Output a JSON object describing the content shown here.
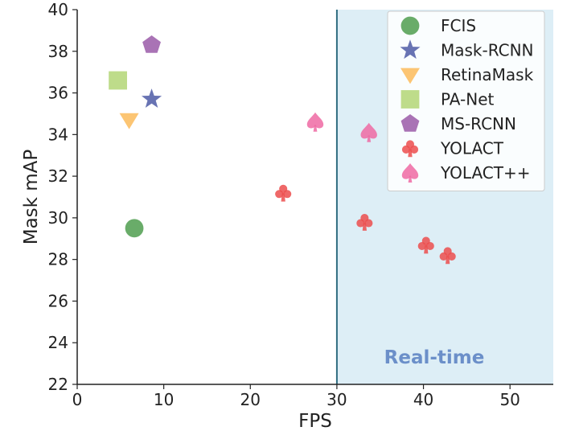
{
  "chart_data": {
    "type": "scatter",
    "title": "",
    "xlabel": "FPS",
    "ylabel": "Mask mAP",
    "xlim": [
      0,
      55
    ],
    "ylim": [
      22,
      40
    ],
    "xticks": [
      "0",
      "10",
      "20",
      "30",
      "40",
      "50"
    ],
    "yticks": [
      "22",
      "24",
      "26",
      "28",
      "30",
      "32",
      "34",
      "36",
      "38",
      "40"
    ],
    "grid": false,
    "legend_position": "top-right",
    "region": {
      "x_start": 30,
      "x_end": 55,
      "label": "Real-time",
      "color": "#ddeef6",
      "line_color": "#2f6d80",
      "label_color": "#6b8fc9"
    },
    "series": [
      {
        "name": "FCIS",
        "marker": "circle",
        "color": "#4f9e4f",
        "points": [
          {
            "x": 6.6,
            "y": 29.5
          }
        ]
      },
      {
        "name": "Mask-RCNN",
        "marker": "star",
        "color": "#4e5aa6",
        "points": [
          {
            "x": 8.6,
            "y": 35.7
          }
        ]
      },
      {
        "name": "RetinaMask",
        "marker": "triangle-down",
        "color": "#fbbb5a",
        "points": [
          {
            "x": 6.0,
            "y": 34.7
          }
        ]
      },
      {
        "name": "PA-Net",
        "marker": "square",
        "color": "#b3d675",
        "points": [
          {
            "x": 4.7,
            "y": 36.6
          }
        ]
      },
      {
        "name": "MS-RCNN",
        "marker": "pentagon",
        "color": "#9a5aa8",
        "points": [
          {
            "x": 8.6,
            "y": 38.3
          }
        ]
      },
      {
        "name": "YOLACT",
        "marker": "club",
        "color": "#ec4e4e",
        "points": [
          {
            "x": 23.8,
            "y": 31.2
          },
          {
            "x": 33.2,
            "y": 29.8
          },
          {
            "x": 40.3,
            "y": 28.7
          },
          {
            "x": 42.8,
            "y": 28.2
          }
        ]
      },
      {
        "name": "YOLACT++",
        "marker": "spade",
        "color": "#ee6aa3",
        "points": [
          {
            "x": 27.5,
            "y": 34.6
          },
          {
            "x": 33.7,
            "y": 34.1
          }
        ]
      }
    ]
  }
}
